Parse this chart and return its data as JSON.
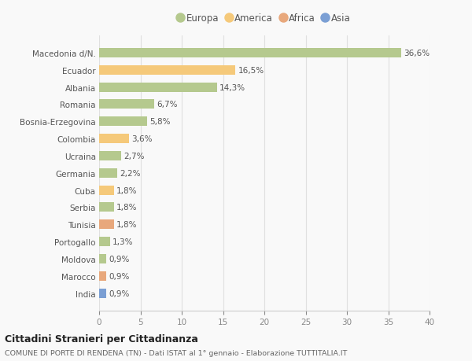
{
  "categories": [
    "Macedonia d/N.",
    "Ecuador",
    "Albania",
    "Romania",
    "Bosnia-Erzegovina",
    "Colombia",
    "Ucraina",
    "Germania",
    "Cuba",
    "Serbia",
    "Tunisia",
    "Portogallo",
    "Moldova",
    "Marocco",
    "India"
  ],
  "values": [
    36.6,
    16.5,
    14.3,
    6.7,
    5.8,
    3.6,
    2.7,
    2.2,
    1.8,
    1.8,
    1.8,
    1.3,
    0.9,
    0.9,
    0.9
  ],
  "labels": [
    "36,6%",
    "16,5%",
    "14,3%",
    "6,7%",
    "5,8%",
    "3,6%",
    "2,7%",
    "2,2%",
    "1,8%",
    "1,8%",
    "1,8%",
    "1,3%",
    "0,9%",
    "0,9%",
    "0,9%"
  ],
  "colors": [
    "#b5c98e",
    "#f5c97a",
    "#b5c98e",
    "#b5c98e",
    "#b5c98e",
    "#f5c97a",
    "#b5c98e",
    "#b5c98e",
    "#f5c97a",
    "#b5c98e",
    "#e8a87c",
    "#b5c98e",
    "#b5c98e",
    "#e8a87c",
    "#7b9fd4"
  ],
  "legend_labels": [
    "Europa",
    "America",
    "Africa",
    "Asia"
  ],
  "legend_colors": [
    "#b5c98e",
    "#f5c97a",
    "#e8a87c",
    "#7b9fd4"
  ],
  "xlim": [
    0,
    40
  ],
  "xticks": [
    0,
    5,
    10,
    15,
    20,
    25,
    30,
    35,
    40
  ],
  "title": "Cittadini Stranieri per Cittadinanza",
  "subtitle": "COMUNE DI PORTE DI RENDENA (TN) - Dati ISTAT al 1° gennaio - Elaborazione TUTTITALIA.IT",
  "bg_color": "#f9f9f9",
  "grid_color": "#e0e0e0"
}
